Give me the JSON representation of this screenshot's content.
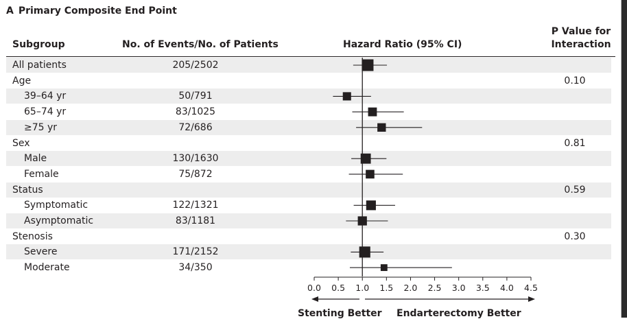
{
  "panel": {
    "letter": "A",
    "title": "Primary Composite End Point"
  },
  "headers": {
    "subgroup": "Subgroup",
    "events": "No. of Events/No. of Patients",
    "hazard": "Hazard Ratio (95% CI)",
    "p_value_line1": "P Value for",
    "p_value_line2": "Interaction"
  },
  "rows": [
    {
      "label": "All patients",
      "events": "205/2502",
      "p": "",
      "indent": false,
      "stripe": true
    },
    {
      "label": "Age",
      "events": "",
      "p": "0.10",
      "indent": false,
      "stripe": false
    },
    {
      "label": "39–64 yr",
      "events": "50/791",
      "p": "",
      "indent": true,
      "stripe": true
    },
    {
      "label": "65–74 yr",
      "events": "83/1025",
      "p": "",
      "indent": true,
      "stripe": false
    },
    {
      "label": "≥75 yr",
      "events": "72/686",
      "p": "",
      "indent": true,
      "stripe": true
    },
    {
      "label": "Sex",
      "events": "",
      "p": "0.81",
      "indent": false,
      "stripe": false
    },
    {
      "label": "Male",
      "events": "130/1630",
      "p": "",
      "indent": true,
      "stripe": true
    },
    {
      "label": "Female",
      "events": "75/872",
      "p": "",
      "indent": true,
      "stripe": false
    },
    {
      "label": "Status",
      "events": "",
      "p": "0.59",
      "indent": false,
      "stripe": true
    },
    {
      "label": "Symptomatic",
      "events": "122/1321",
      "p": "",
      "indent": true,
      "stripe": false
    },
    {
      "label": "Asymptomatic",
      "events": "83/1181",
      "p": "",
      "indent": true,
      "stripe": true
    },
    {
      "label": "Stenosis",
      "events": "",
      "p": "0.30",
      "indent": false,
      "stripe": false
    },
    {
      "label": "Severe",
      "events": "171/2152",
      "p": "",
      "indent": true,
      "stripe": true
    },
    {
      "label": "Moderate",
      "events": "34/350",
      "p": "",
      "indent": true,
      "stripe": false
    }
  ],
  "chart_data": {
    "type": "forest",
    "title": "Primary Composite End Point",
    "xlabel": "Hazard Ratio (95% CI)",
    "xlim": [
      0.0,
      4.5
    ],
    "ticks": [
      "0.0",
      "0.5",
      "1.0",
      "1.5",
      "2.0",
      "2.5",
      "3.0",
      "3.5",
      "4.0",
      "4.5"
    ],
    "reference_line": 1.0,
    "left_direction": "Stenting Better",
    "right_direction": "Endarterectomy Better",
    "points": [
      {
        "row": 0,
        "label": "All patients",
        "hr": 1.11,
        "lo": 0.81,
        "hi": 1.51,
        "size": 1.0
      },
      {
        "row": 2,
        "label": "39–64 yr",
        "hr": 0.68,
        "lo": 0.39,
        "hi": 1.18,
        "size": 0.55
      },
      {
        "row": 3,
        "label": "65–74 yr",
        "hr": 1.21,
        "lo": 0.79,
        "hi": 1.86,
        "size": 0.62
      },
      {
        "row": 4,
        "label": "≥75 yr",
        "hr": 1.4,
        "lo": 0.87,
        "hi": 2.24,
        "size": 0.58
      },
      {
        "row": 6,
        "label": "Male",
        "hr": 1.07,
        "lo": 0.77,
        "hi": 1.5,
        "size": 0.8
      },
      {
        "row": 7,
        "label": "Female",
        "hr": 1.16,
        "lo": 0.72,
        "hi": 1.84,
        "size": 0.6
      },
      {
        "row": 9,
        "label": "Symptomatic",
        "hr": 1.18,
        "lo": 0.82,
        "hi": 1.68,
        "size": 0.74
      },
      {
        "row": 10,
        "label": "Asymptomatic",
        "hr": 1.0,
        "lo": 0.66,
        "hi": 1.53,
        "size": 0.66
      },
      {
        "row": 12,
        "label": "Severe",
        "hr": 1.05,
        "lo": 0.76,
        "hi": 1.44,
        "size": 0.92
      },
      {
        "row": 13,
        "label": "Moderate",
        "hr": 1.45,
        "lo": 0.74,
        "hi": 2.86,
        "size": 0.35
      }
    ]
  }
}
